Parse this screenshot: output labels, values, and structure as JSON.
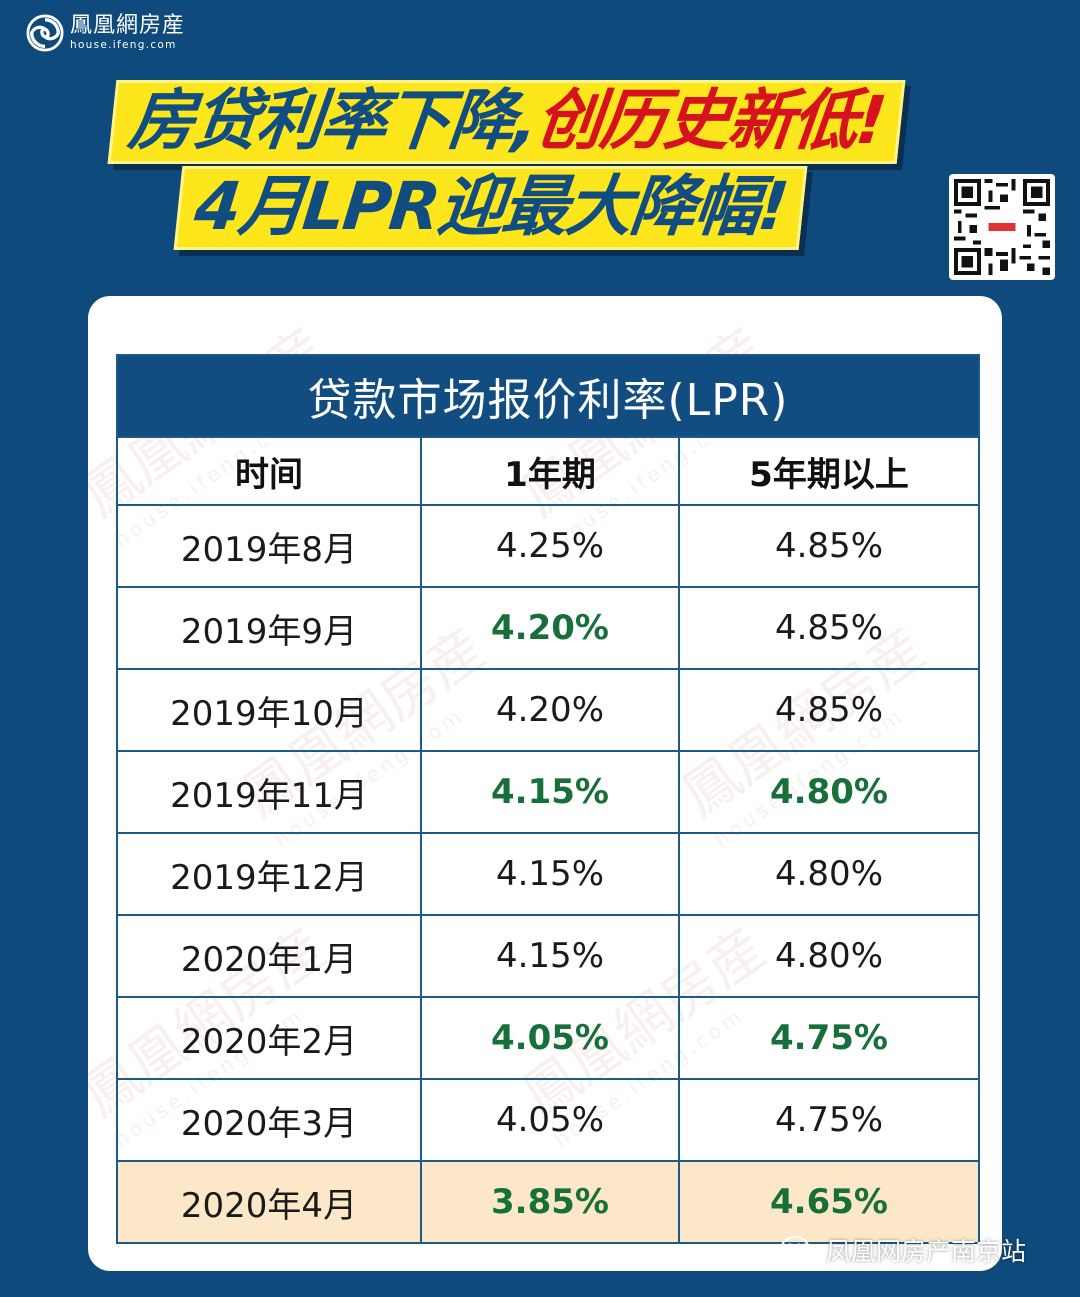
{
  "brand": {
    "name_cn": "鳳凰網房産",
    "url": "house.ifeng.com",
    "logo_icon": "phoenix-swirl-icon"
  },
  "headline": {
    "line1_part1": "房贷利率下降,",
    "line1_part2": "创历史新低!",
    "line2": "4月LPR迎最大降幅!",
    "colors": {
      "primary": "#124d82",
      "highlight": "#d5121d",
      "background": "#fde61c"
    }
  },
  "qr_code": {
    "icon": "qr-code-icon"
  },
  "table": {
    "title": "贷款市场报价利率(LPR)",
    "columns": [
      "时间",
      "1年期",
      "5年期以上"
    ],
    "rows": [
      {
        "date": "2019年8月",
        "one_year": "4.25%",
        "five_year": "4.85%",
        "one_year_changed": false,
        "five_year_changed": false,
        "highlight": false
      },
      {
        "date": "2019年9月",
        "one_year": "4.20%",
        "five_year": "4.85%",
        "one_year_changed": true,
        "five_year_changed": false,
        "highlight": false
      },
      {
        "date": "2019年10月",
        "one_year": "4.20%",
        "five_year": "4.85%",
        "one_year_changed": false,
        "five_year_changed": false,
        "highlight": false
      },
      {
        "date": "2019年11月",
        "one_year": "4.15%",
        "five_year": "4.80%",
        "one_year_changed": true,
        "five_year_changed": true,
        "highlight": false
      },
      {
        "date": "2019年12月",
        "one_year": "4.15%",
        "five_year": "4.80%",
        "one_year_changed": false,
        "five_year_changed": false,
        "highlight": false
      },
      {
        "date": "2020年1月",
        "one_year": "4.15%",
        "five_year": "4.80%",
        "one_year_changed": false,
        "five_year_changed": false,
        "highlight": false
      },
      {
        "date": "2020年2月",
        "one_year": "4.05%",
        "five_year": "4.75%",
        "one_year_changed": true,
        "five_year_changed": true,
        "highlight": false
      },
      {
        "date": "2020年3月",
        "one_year": "4.05%",
        "five_year": "4.75%",
        "one_year_changed": false,
        "five_year_changed": false,
        "highlight": false
      },
      {
        "date": "2020年4月",
        "one_year": "3.85%",
        "five_year": "4.65%",
        "one_year_changed": true,
        "five_year_changed": true,
        "highlight": true
      }
    ],
    "colors": {
      "header_bg": "#124d82",
      "changed_text": "#17703a",
      "highlight_row_bg": "#fce4be",
      "border": "#1c5a87"
    }
  },
  "watermark": {
    "text_cn": "鳳凰網房産",
    "text_en": "house.ifeng.com"
  },
  "footer": {
    "account_name": "凤凰网房产南京站",
    "icon": "wechat-icon"
  }
}
